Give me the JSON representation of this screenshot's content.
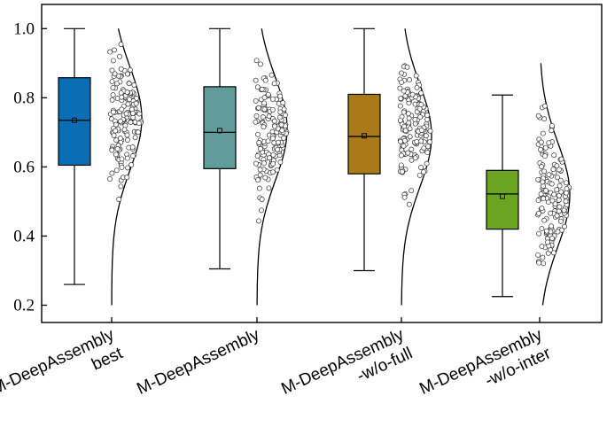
{
  "chart_data": {
    "type": "box",
    "title": "",
    "xlabel": "",
    "ylabel": "",
    "ylim": [
      0.15,
      1.07
    ],
    "yticks": [
      0.2,
      0.4,
      0.6,
      0.8,
      1.0
    ],
    "ytick_labels": [
      "0.2",
      "0.4",
      "0.6",
      "0.8",
      "1.0"
    ],
    "categories": [
      [
        "M-DeepAssembly",
        "best"
      ],
      [
        "M-DeepAssembly"
      ],
      [
        "M-DeepAssembly",
        "-w/o-full"
      ],
      [
        "M-DeepAssembly",
        "-w/o-inter"
      ]
    ],
    "series": [
      {
        "name": "M-DeepAssembly best",
        "color": "#0a6eb4",
        "whisker_low": 0.26,
        "q1": 0.605,
        "median": 0.735,
        "q3": 0.858,
        "whisker_high": 1.0,
        "mean": 0.735,
        "dist_peak": 0.74,
        "dist_low": 0.2,
        "dist_high": 1.0
      },
      {
        "name": "M-DeepAssembly",
        "color": "#5f9c9a",
        "whisker_low": 0.305,
        "q1": 0.595,
        "median": 0.7,
        "q3": 0.832,
        "whisker_high": 1.0,
        "mean": 0.705,
        "dist_peak": 0.71,
        "dist_low": 0.2,
        "dist_high": 1.0
      },
      {
        "name": "M-DeepAssembly -w/o-full",
        "color": "#aa7918",
        "whisker_low": 0.3,
        "q1": 0.58,
        "median": 0.688,
        "q3": 0.81,
        "whisker_high": 1.0,
        "mean": 0.69,
        "dist_peak": 0.69,
        "dist_low": 0.2,
        "dist_high": 1.0
      },
      {
        "name": "M-DeepAssembly -w/o-inter",
        "color": "#6aa420",
        "whisker_low": 0.225,
        "q1": 0.42,
        "median": 0.522,
        "q3": 0.59,
        "whisker_high": 0.808,
        "mean": 0.515,
        "dist_peak": 0.52,
        "dist_low": 0.2,
        "dist_high": 0.9
      }
    ]
  }
}
